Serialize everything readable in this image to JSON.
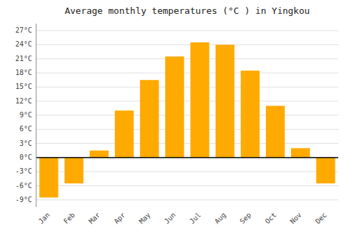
{
  "chart_data": {
    "type": "bar",
    "title": "Average monthly temperatures (°C ) in Yingkou",
    "categories": [
      "Jan",
      "Feb",
      "Mar",
      "Apr",
      "May",
      "Jun",
      "Jul",
      "Aug",
      "Sep",
      "Oct",
      "Nov",
      "Dec"
    ],
    "values": [
      -8.5,
      -5.5,
      1.5,
      10.0,
      16.5,
      21.5,
      24.5,
      24.0,
      18.5,
      11.0,
      2.0,
      -5.5
    ],
    "color": "#FFAA00",
    "ylim": [
      -10.5,
      28.5
    ],
    "yticks": [
      {
        "value": -9,
        "label": "-9°C"
      },
      {
        "value": -6,
        "label": "-6°C"
      },
      {
        "value": -3,
        "label": "-3°C"
      },
      {
        "value": 0,
        "label": "0°C"
      },
      {
        "value": 3,
        "label": "3°C"
      },
      {
        "value": 6,
        "label": "6°C"
      },
      {
        "value": 9,
        "label": "9°C"
      },
      {
        "value": 12,
        "label": "12°C"
      },
      {
        "value": 15,
        "label": "15°C"
      },
      {
        "value": 18,
        "label": "18°C"
      },
      {
        "value": 21,
        "label": "21°C"
      },
      {
        "value": 24,
        "label": "24°C"
      },
      {
        "value": 27,
        "label": "27°C"
      }
    ],
    "grid": true
  }
}
